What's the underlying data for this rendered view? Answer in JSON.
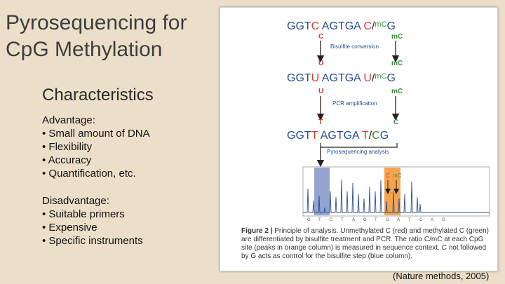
{
  "title": {
    "line1": "Pyrosequencing for",
    "line2": "CpG Methylation"
  },
  "subtitle": "Characteristics",
  "advantage": {
    "heading": "Advantage:",
    "items": [
      "• Small amount of DNA",
      "• Flexibility",
      "• Accuracy",
      "• Quantification, etc."
    ]
  },
  "disadvantage": {
    "heading": "Disadvantage:",
    "items": [
      "• Suitable primers",
      "• Expensive",
      "• Specific instruments"
    ]
  },
  "figure": {
    "seq1": {
      "a": "GGT",
      "b": "C",
      "c": " AGTGA ",
      "d": "C",
      "e": "/",
      "f": "mC",
      "g": "G"
    },
    "seq2": {
      "a": "GGT",
      "b": "U",
      "c": " AGTGA ",
      "d": "U",
      "e": "/",
      "f": "mC",
      "g": "G"
    },
    "seq3": {
      "a": "GGT",
      "b": "T",
      "c": " AGTGA ",
      "d": "T",
      "e": "/",
      "f": "C",
      "g": "G"
    },
    "step1": {
      "left": "C",
      "right": "mC",
      "label": "Bisulfite conversion",
      "left_out": "U",
      "right_out": "mC"
    },
    "step2": {
      "left": "U",
      "right": "mC",
      "label": "PCR amplification",
      "left_out": "T",
      "right_out": "C"
    },
    "step3": {
      "label": "Pyrosequencing analysis"
    },
    "peak_labels": {
      "c": "C",
      "mc": "mC"
    },
    "axis_letters": [
      "G",
      "T",
      "C",
      "T",
      "A",
      "G",
      "T",
      "G",
      "A",
      "T",
      "C",
      "A",
      "G"
    ],
    "caption_bold": "Figure 2 |",
    "caption": " Principle of analysis. Unmethylated C (red) and methylated C (green) are differentiated by bisulfite treatment and PCR. The ratio C/mC at each CpG site (peaks in orange column) is measured in sequence context. C not followed by G acts as control for the bisulfite step (blue column)."
  },
  "colors": {
    "red": "#e0392b",
    "green": "#3c8c3c",
    "blue": "#2a4e8c",
    "orange": "#f39a3c",
    "bluecol": "#6f86bd"
  },
  "credit": "(Nature methods, 2005)"
}
